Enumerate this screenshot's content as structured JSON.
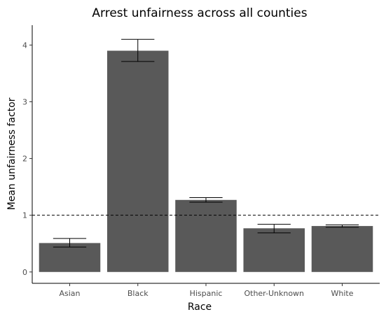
{
  "chart_data": {
    "type": "bar",
    "title": "Arrest unfairness across all counties",
    "xlabel": "Race",
    "ylabel": "Mean unfairness factor",
    "categories": [
      "Asian",
      "Black",
      "Hispanic",
      "Other-Unknown",
      "White"
    ],
    "values": [
      0.51,
      3.9,
      1.27,
      0.77,
      0.81
    ],
    "error_low": [
      0.44,
      3.71,
      1.23,
      0.69,
      0.79
    ],
    "error_high": [
      0.59,
      4.1,
      1.31,
      0.84,
      0.83
    ],
    "reference_line": 1,
    "ylim": [
      -0.2,
      4.35
    ],
    "yticks": [
      0,
      1,
      2,
      3,
      4
    ],
    "grid": false,
    "bar_color": "#595959"
  }
}
